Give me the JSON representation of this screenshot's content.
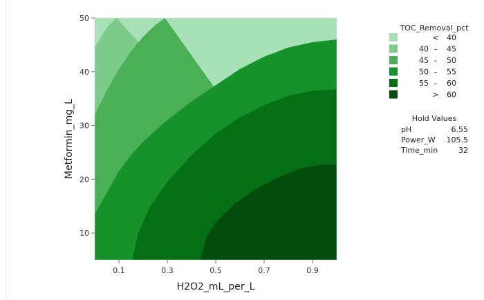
{
  "chart_data": {
    "type": "contour",
    "xlabel": "H2O2_mL_per_L",
    "ylabel": "Metformin_mg_L",
    "xlim": [
      0,
      1
    ],
    "ylim": [
      5,
      50
    ],
    "x_ticks": [
      0.1,
      0.3,
      0.5,
      0.7,
      0.9
    ],
    "x_tick_labels": [
      "0.1",
      "0.3",
      "0.5",
      "0.7",
      "0.9"
    ],
    "y_ticks": [
      10,
      20,
      30,
      40,
      50
    ],
    "y_tick_labels": [
      "10",
      "20",
      "30",
      "40",
      "50"
    ],
    "grid": false,
    "legend_position": "right",
    "legend": {
      "title": "TOC_Removal_pct",
      "bands": [
        {
          "lo_label": "",
          "sep": "<",
          "hi_label": "40",
          "color": "#a8e0b8"
        },
        {
          "lo_label": "40",
          "sep": "–",
          "hi_label": "45",
          "color": "#7ccb8a"
        },
        {
          "lo_label": "45",
          "sep": "–",
          "hi_label": "50",
          "color": "#4bb055"
        },
        {
          "lo_label": "50",
          "sep": "–",
          "hi_label": "55",
          "color": "#17912a"
        },
        {
          "lo_label": "55",
          "sep": "–",
          "hi_label": "60",
          "color": "#056f16"
        },
        {
          "lo_label": "",
          "sep": ">",
          "hi_label": "60",
          "color": "#024d0e"
        }
      ]
    },
    "hold_values": {
      "title": "Hold Values",
      "rows": [
        {
          "name": "pH",
          "value": "6.55"
        },
        {
          "name": "Power_W",
          "value": "105.5"
        },
        {
          "name": "Time_min",
          "value": "32"
        }
      ]
    },
    "contour_boundaries": [
      {
        "level": 40,
        "points": [
          [
            0.0,
            44.5
          ],
          [
            0.02,
            46.0
          ],
          [
            0.05,
            48.2
          ],
          [
            0.09,
            50.0
          ]
        ]
      },
      {
        "level": 45,
        "points": [
          [
            0.0,
            32.0
          ],
          [
            0.05,
            36.5
          ],
          [
            0.1,
            40.5
          ],
          [
            0.15,
            43.8
          ],
          [
            0.2,
            46.5
          ],
          [
            0.25,
            48.7
          ],
          [
            0.29,
            50.0
          ]
        ]
      },
      {
        "level": 50,
        "points": [
          [
            0.0,
            13.5
          ],
          [
            0.05,
            17.5
          ],
          [
            0.1,
            21.5
          ],
          [
            0.15,
            24.5
          ],
          [
            0.2,
            27.0
          ],
          [
            0.3,
            31.0
          ],
          [
            0.4,
            34.5
          ],
          [
            0.5,
            37.5
          ],
          [
            0.6,
            40.5
          ],
          [
            0.7,
            42.8
          ],
          [
            0.8,
            44.5
          ],
          [
            0.9,
            45.5
          ],
          [
            1.0,
            46.0
          ]
        ]
      },
      {
        "level": 55,
        "points": [
          [
            0.155,
            5.0
          ],
          [
            0.18,
            10.0
          ],
          [
            0.23,
            15.0
          ],
          [
            0.3,
            19.5
          ],
          [
            0.4,
            24.5
          ],
          [
            0.5,
            28.5
          ],
          [
            0.6,
            31.5
          ],
          [
            0.7,
            33.8
          ],
          [
            0.8,
            35.5
          ],
          [
            0.9,
            36.5
          ],
          [
            1.0,
            36.7
          ]
        ]
      },
      {
        "level": 60,
        "points": [
          [
            0.435,
            5.0
          ],
          [
            0.46,
            9.0
          ],
          [
            0.5,
            12.0
          ],
          [
            0.58,
            15.5
          ],
          [
            0.66,
            18.0
          ],
          [
            0.75,
            20.2
          ],
          [
            0.85,
            22.0
          ],
          [
            0.93,
            22.7
          ],
          [
            1.0,
            22.8
          ]
        ]
      }
    ]
  }
}
